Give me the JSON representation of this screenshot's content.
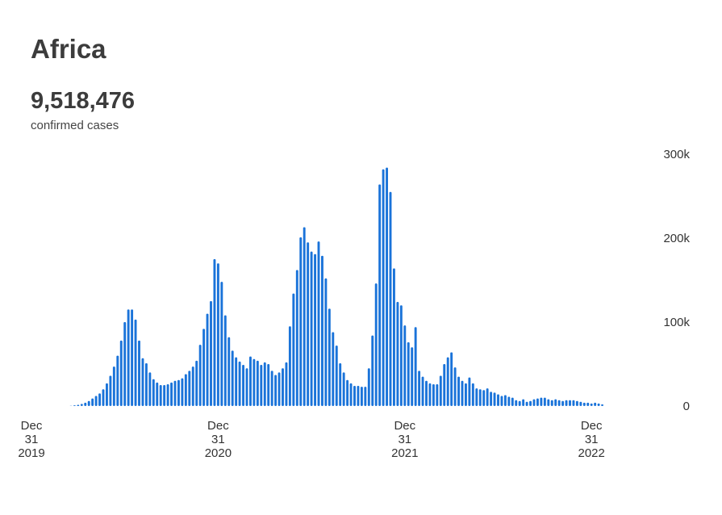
{
  "title": "Africa",
  "total": "9,518,476",
  "total_label": "confirmed cases",
  "colors": {
    "bar": "#1a73d9",
    "text": "#333333"
  },
  "chart_data": {
    "type": "bar",
    "title": "Africa",
    "xlabel": "",
    "ylabel": "",
    "ylim": [
      0,
      300000
    ],
    "yticks": [
      {
        "value": 0,
        "label": "0"
      },
      {
        "value": 100000,
        "label": "100k"
      },
      {
        "value": 200000,
        "label": "200k"
      },
      {
        "value": 300000,
        "label": "300k"
      }
    ],
    "xticks": [
      {
        "week": 0,
        "lines": [
          "Dec",
          "31",
          "2019"
        ]
      },
      {
        "week": 52,
        "lines": [
          "Dec",
          "31",
          "2020"
        ]
      },
      {
        "week": 104,
        "lines": [
          "Dec",
          "31",
          "2021"
        ]
      },
      {
        "week": 156,
        "lines": [
          "Dec",
          "31",
          "2022"
        ]
      }
    ],
    "series": [
      {
        "values": [
          0,
          0,
          0,
          0,
          0,
          0,
          0,
          0,
          0,
          0,
          0,
          200,
          800,
          1500,
          2500,
          4000,
          6000,
          9000,
          12000,
          15000,
          20000,
          27000,
          36000,
          47000,
          60000,
          78000,
          100000,
          115000,
          115000,
          103000,
          78000,
          57000,
          51000,
          40000,
          32000,
          28000,
          25000,
          25000,
          26000,
          28000,
          30000,
          31000,
          33000,
          38000,
          42000,
          47000,
          54000,
          73000,
          92000,
          110000,
          125000,
          175000,
          170000,
          148000,
          108000,
          82000,
          66000,
          58000,
          53000,
          49000,
          45000,
          59000,
          56000,
          54000,
          49000,
          52000,
          50000,
          42000,
          37000,
          40000,
          45000,
          52000,
          95000,
          134000,
          162000,
          201000,
          213000,
          195000,
          184000,
          181000,
          196000,
          179000,
          152000,
          116000,
          88000,
          72000,
          51000,
          40000,
          31000,
          27000,
          24000,
          24000,
          23000,
          23000,
          45000,
          84000,
          146000,
          264000,
          282000,
          284000,
          255000,
          164000,
          124000,
          120000,
          96000,
          76000,
          70000,
          94000,
          42000,
          35000,
          30000,
          27000,
          26000,
          26000,
          36000,
          50000,
          58000,
          64000,
          46000,
          35000,
          30000,
          27000,
          34000,
          27000,
          21000,
          20000,
          19000,
          21000,
          17000,
          16000,
          14000,
          12000,
          13000,
          11000,
          10000,
          7000,
          6000,
          8000,
          5000,
          6000,
          8000,
          9000,
          10000,
          10000,
          8000,
          7000,
          8000,
          7000,
          6000,
          7000,
          7000,
          7000,
          6000,
          5000,
          4000,
          4000,
          3000,
          4000,
          3000,
          2000
        ]
      }
    ]
  }
}
